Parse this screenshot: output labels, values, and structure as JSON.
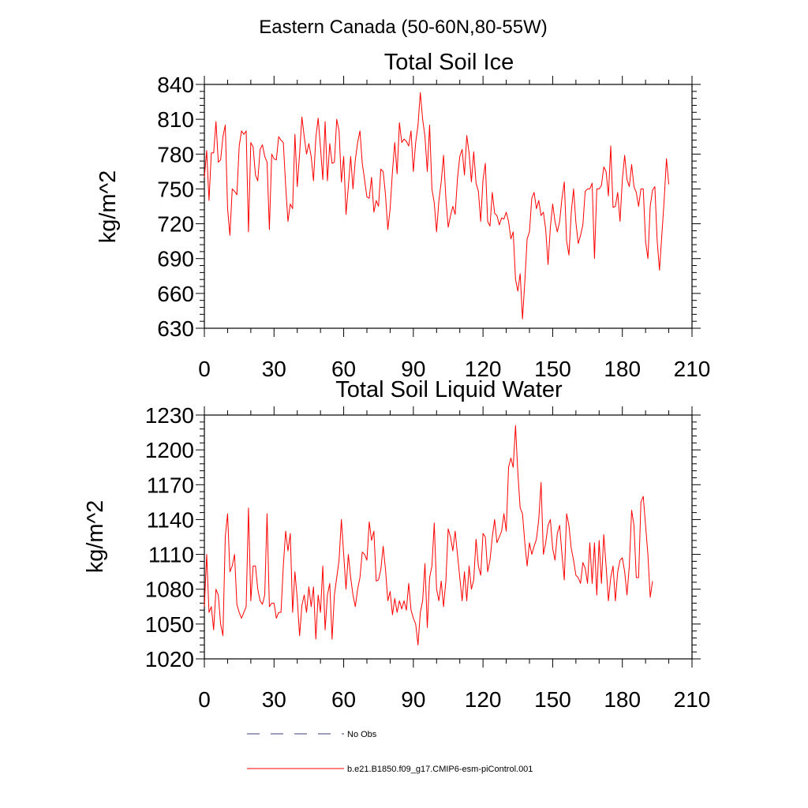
{
  "title": "Eastern Canada (50-60N,80-55W)",
  "legend": [
    {
      "label": "No Obs",
      "style": "dashed",
      "color": "#3c3c78"
    },
    {
      "label": "b.e21.B1850.f09_g17.CMIP6-esm-piControl.001",
      "style": "solid",
      "color": "#ff0000"
    }
  ],
  "chart_data": [
    {
      "type": "line",
      "title": "Total Soil Ice",
      "xlabel": "",
      "ylabel": "kg/m^2",
      "xlim": [
        0,
        210
      ],
      "ylim": [
        630,
        840
      ],
      "xticks": [
        0,
        30,
        60,
        90,
        120,
        150,
        180,
        210
      ],
      "yticks": [
        630,
        660,
        690,
        720,
        750,
        780,
        810,
        840
      ],
      "series": [
        {
          "name": "b.e21.B1850.f09_g17.CMIP6-esm-piControl.001",
          "color": "#ff0000",
          "values": [
            760,
            783,
            740,
            781,
            781,
            808,
            773,
            775,
            795,
            805,
            733,
            710,
            750,
            748,
            745,
            787,
            800,
            797,
            800,
            713,
            790,
            786,
            762,
            757,
            784,
            788,
            778,
            773,
            715,
            780,
            776,
            775,
            795,
            792,
            790,
            753,
            722,
            737,
            733,
            797,
            752,
            780,
            812,
            795,
            780,
            789,
            778,
            757,
            794,
            811,
            786,
            758,
            808,
            757,
            789,
            772,
            773,
            810,
            800,
            756,
            778,
            728,
            752,
            778,
            750,
            775,
            790,
            800,
            772,
            758,
            743,
            742,
            760,
            730,
            740,
            735,
            767,
            765,
            745,
            715,
            733,
            765,
            790,
            763,
            807,
            790,
            793,
            791,
            787,
            800,
            765,
            790,
            805,
            833,
            810,
            795,
            765,
            805,
            750,
            738,
            713,
            740,
            756,
            779,
            742,
            717,
            727,
            735,
            728,
            759,
            778,
            784,
            762,
            796,
            781,
            756,
            782,
            755,
            748,
            722,
            758,
            772,
            722,
            718,
            747,
            729,
            727,
            719,
            725,
            724,
            730,
            722,
            707,
            713,
            672,
            662,
            677,
            638,
            670,
            707,
            713,
            742,
            747,
            733,
            740,
            727,
            730,
            715,
            685,
            717,
            737,
            722,
            713,
            722,
            742,
            756,
            705,
            693,
            730,
            750,
            721,
            703,
            710,
            719,
            748,
            750,
            750,
            755,
            690,
            750,
            750,
            753,
            769,
            765,
            744,
            787,
            734,
            735,
            747,
            722,
            758,
            779,
            758,
            752,
            771,
            752,
            747,
            735,
            750,
            750,
            705,
            690,
            735,
            749,
            752,
            705,
            680,
            710,
            740,
            776,
            754
          ]
        }
      ]
    },
    {
      "type": "line",
      "title": "Total Soil Liquid Water",
      "xlabel": "",
      "ylabel": "kg/m^2",
      "xlim": [
        0,
        210
      ],
      "ylim": [
        1020,
        1230
      ],
      "xticks": [
        0,
        30,
        60,
        90,
        120,
        150,
        180,
        210
      ],
      "yticks": [
        1020,
        1050,
        1080,
        1110,
        1140,
        1170,
        1200,
        1230
      ],
      "series": [
        {
          "name": "b.e21.B1850.f09_g17.CMIP6-esm-piControl.001",
          "color": "#ff0000",
          "values": [
            1065,
            1110,
            1060,
            1065,
            1045,
            1080,
            1075,
            1050,
            1040,
            1125,
            1145,
            1095,
            1100,
            1110,
            1067,
            1060,
            1055,
            1060,
            1065,
            1150,
            1070,
            1100,
            1100,
            1080,
            1070,
            1067,
            1075,
            1145,
            1065,
            1068,
            1068,
            1055,
            1060,
            1060,
            1100,
            1130,
            1113,
            1128,
            1060,
            1095,
            1072,
            1040,
            1066,
            1075,
            1060,
            1082,
            1065,
            1082,
            1037,
            1075,
            1060,
            1100,
            1045,
            1075,
            1085,
            1037,
            1075,
            1090,
            1105,
            1140,
            1110,
            1080,
            1110,
            1090,
            1075,
            1065,
            1080,
            1090,
            1112,
            1110,
            1105,
            1138,
            1122,
            1130,
            1087,
            1088,
            1097,
            1117,
            1097,
            1070,
            1078,
            1058,
            1072,
            1060,
            1070,
            1063,
            1070,
            1062,
            1085,
            1062,
            1055,
            1050,
            1032,
            1060,
            1070,
            1102,
            1047,
            1090,
            1100,
            1137,
            1080,
            1070,
            1087,
            1065,
            1087,
            1132,
            1125,
            1113,
            1130,
            1110,
            1090,
            1070,
            1095,
            1070,
            1100,
            1080,
            1088,
            1123,
            1100,
            1092,
            1128,
            1125,
            1095,
            1105,
            1125,
            1140,
            1120,
            1125,
            1130,
            1145,
            1130,
            1185,
            1193,
            1185,
            1221,
            1180,
            1150,
            1145,
            1120,
            1100,
            1120,
            1110,
            1117,
            1123,
            1140,
            1172,
            1110,
            1120,
            1135,
            1140,
            1115,
            1105,
            1128,
            1135,
            1110,
            1088,
            1145,
            1135,
            1115,
            1105,
            1092,
            1090,
            1085,
            1103,
            1098,
            1085,
            1120,
            1085,
            1120,
            1075,
            1122,
            1085,
            1127,
            1100,
            1070,
            1090,
            1100,
            1070,
            1095,
            1105,
            1107,
            1095,
            1075,
            1100,
            1148,
            1135,
            1090,
            1090,
            1155,
            1160,
            1135,
            1110,
            1073,
            1087
          ]
        }
      ]
    }
  ]
}
